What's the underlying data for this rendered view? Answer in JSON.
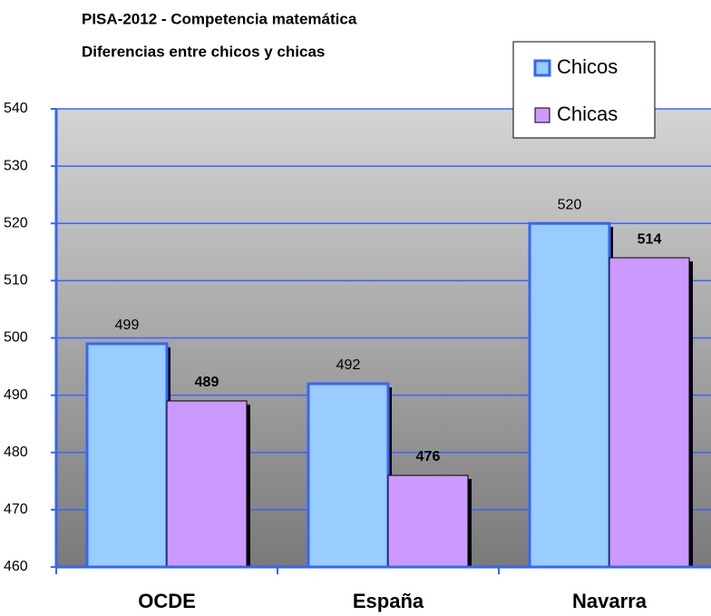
{
  "chart_data": {
    "type": "bar",
    "title": "PISA-2012 - Competencia matemática",
    "subtitle": "Diferencias entre chicos y chicas",
    "categories": [
      "OCDE",
      "España",
      "Navarra"
    ],
    "series": [
      {
        "name": "Chicos",
        "color": "#99ccff",
        "values": [
          499,
          492,
          520
        ]
      },
      {
        "name": "Chicas",
        "color": "#cc99ff",
        "values": [
          489,
          476,
          514
        ]
      }
    ],
    "ylim": [
      460,
      540
    ],
    "yticks": [
      460,
      470,
      480,
      490,
      500,
      510,
      520,
      530,
      540
    ],
    "grid": true,
    "legend": "top-right"
  }
}
